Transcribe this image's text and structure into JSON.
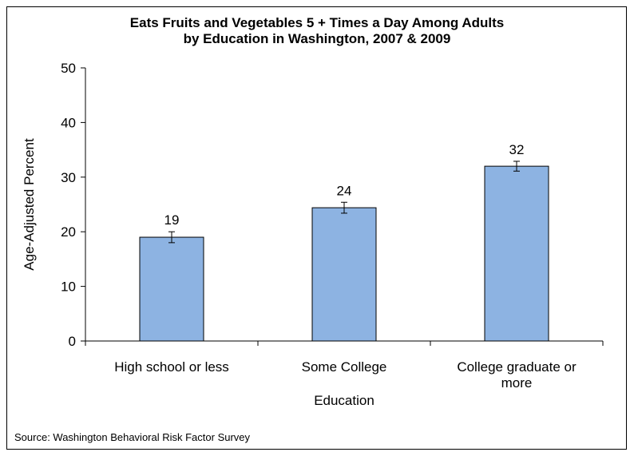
{
  "chart_data": {
    "type": "bar",
    "title": "Eats Fruits and Vegetables 5 + Times a Day Among Adults by Education in Washington, 2007 & 2009",
    "title_lines": [
      "Eats Fruits and Vegetables 5 + Times a Day Among Adults",
      "by Education in Washington, 2007 & 2009"
    ],
    "categories": [
      [
        "High school or less"
      ],
      [
        "Some College"
      ],
      [
        "College graduate or",
        "more"
      ]
    ],
    "values": [
      19,
      24,
      32
    ],
    "value_precise": [
      19.0,
      24.4,
      32.0
    ],
    "error_bars": [
      [
        18.0,
        20.0
      ],
      [
        23.4,
        25.4
      ],
      [
        31.1,
        32.9
      ]
    ],
    "data_labels": [
      "19",
      "24",
      "32"
    ],
    "xlabel": "Education",
    "ylabel": "Age-Adjusted Percent",
    "ylim": [
      0,
      50
    ],
    "yticks": [
      0,
      10,
      20,
      30,
      40,
      50
    ],
    "ytick_labels": [
      "0",
      "10",
      "20",
      "30",
      "40",
      "50"
    ],
    "grid": false,
    "legend": "none",
    "bar_color": "#8db3e2",
    "bar_edge_color": "#000000"
  },
  "source_note": "Source: Washington Behavioral Risk Factor Survey"
}
